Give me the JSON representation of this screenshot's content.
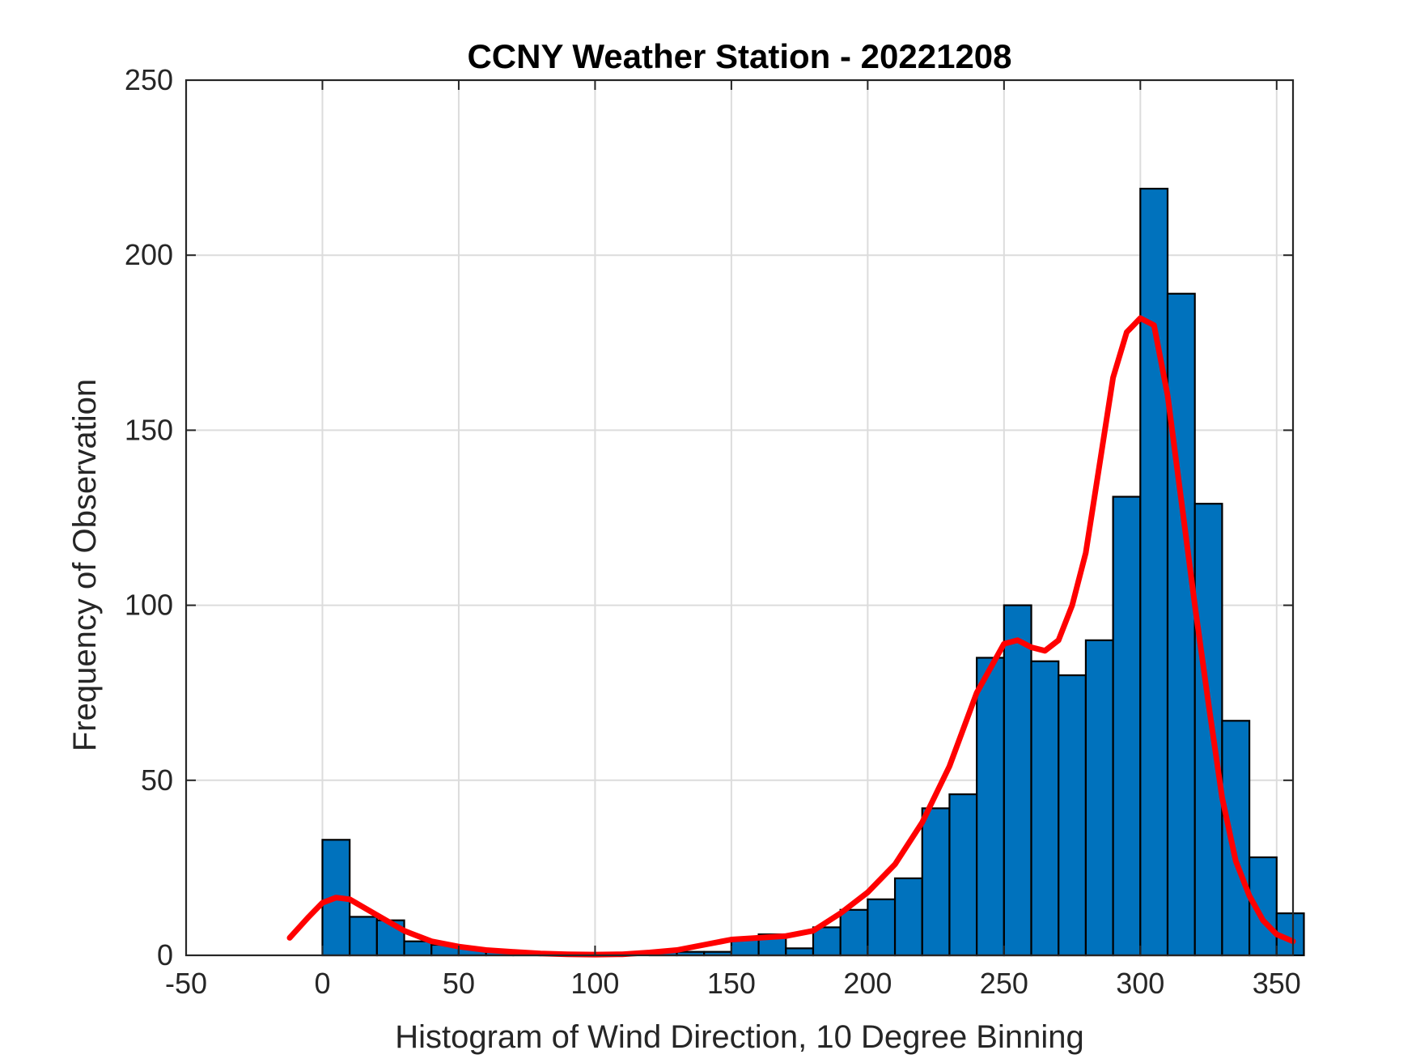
{
  "chart_data": {
    "type": "bar",
    "title": "CCNY Weather Station - 20221208",
    "xlabel": "Histogram of Wind Direction, 10 Degree Binning",
    "ylabel": "Frequency of Observation",
    "xlim": [
      -50,
      356
    ],
    "ylim": [
      0,
      250
    ],
    "grid": true,
    "legend": "none",
    "xticks": [
      -50,
      0,
      50,
      100,
      150,
      200,
      250,
      300,
      350
    ],
    "yticks": [
      0,
      50,
      100,
      150,
      200,
      250
    ],
    "bin_width": 10,
    "bins": [
      {
        "x0": 0,
        "x1": 10,
        "count": 33
      },
      {
        "x0": 10,
        "x1": 20,
        "count": 11
      },
      {
        "x0": 20,
        "x1": 30,
        "count": 10
      },
      {
        "x0": 30,
        "x1": 40,
        "count": 4
      },
      {
        "x0": 40,
        "x1": 50,
        "count": 3
      },
      {
        "x0": 50,
        "x1": 60,
        "count": 2
      },
      {
        "x0": 60,
        "x1": 70,
        "count": 1
      },
      {
        "x0": 70,
        "x1": 80,
        "count": 1
      },
      {
        "x0": 80,
        "x1": 90,
        "count": 0
      },
      {
        "x0": 90,
        "x1": 100,
        "count": 0
      },
      {
        "x0": 100,
        "x1": 110,
        "count": 0
      },
      {
        "x0": 110,
        "x1": 120,
        "count": 0
      },
      {
        "x0": 120,
        "x1": 130,
        "count": 1
      },
      {
        "x0": 130,
        "x1": 140,
        "count": 1
      },
      {
        "x0": 140,
        "x1": 150,
        "count": 1
      },
      {
        "x0": 150,
        "x1": 160,
        "count": 5
      },
      {
        "x0": 160,
        "x1": 170,
        "count": 6
      },
      {
        "x0": 170,
        "x1": 180,
        "count": 2
      },
      {
        "x0": 180,
        "x1": 190,
        "count": 8
      },
      {
        "x0": 190,
        "x1": 200,
        "count": 13
      },
      {
        "x0": 200,
        "x1": 210,
        "count": 16
      },
      {
        "x0": 210,
        "x1": 220,
        "count": 22
      },
      {
        "x0": 220,
        "x1": 230,
        "count": 42
      },
      {
        "x0": 230,
        "x1": 240,
        "count": 46
      },
      {
        "x0": 240,
        "x1": 250,
        "count": 85
      },
      {
        "x0": 250,
        "x1": 260,
        "count": 100
      },
      {
        "x0": 260,
        "x1": 270,
        "count": 84
      },
      {
        "x0": 270,
        "x1": 280,
        "count": 80
      },
      {
        "x0": 280,
        "x1": 290,
        "count": 90
      },
      {
        "x0": 290,
        "x1": 300,
        "count": 131
      },
      {
        "x0": 300,
        "x1": 310,
        "count": 219
      },
      {
        "x0": 310,
        "x1": 320,
        "count": 189
      },
      {
        "x0": 320,
        "x1": 330,
        "count": 129
      },
      {
        "x0": 330,
        "x1": 340,
        "count": 67
      },
      {
        "x0": 340,
        "x1": 350,
        "count": 28
      },
      {
        "x0": 350,
        "x1": 360,
        "count": 12
      }
    ],
    "density_curve": {
      "x": [
        -12,
        -5,
        0,
        5,
        10,
        20,
        30,
        40,
        50,
        60,
        70,
        80,
        90,
        100,
        110,
        120,
        130,
        140,
        150,
        160,
        170,
        180,
        190,
        200,
        210,
        220,
        230,
        240,
        250,
        255,
        260,
        265,
        270,
        275,
        280,
        285,
        290,
        295,
        300,
        305,
        310,
        315,
        320,
        325,
        330,
        335,
        340,
        345,
        350,
        356
      ],
      "y": [
        5,
        11,
        15,
        16.5,
        16,
        11.5,
        7,
        4,
        2.5,
        1.5,
        1,
        0.5,
        0.3,
        0.2,
        0.3,
        0.8,
        1.5,
        3,
        4.5,
        5,
        5.5,
        7,
        12,
        18,
        26,
        38,
        54,
        75,
        89,
        90,
        88,
        87,
        90,
        100,
        115,
        140,
        165,
        178,
        182,
        180,
        160,
        130,
        100,
        72,
        45,
        27,
        17,
        10,
        6,
        4
      ],
      "color": "#ff0000"
    },
    "bar_color": "#0072bd",
    "bar_edge_color": "#000000"
  }
}
